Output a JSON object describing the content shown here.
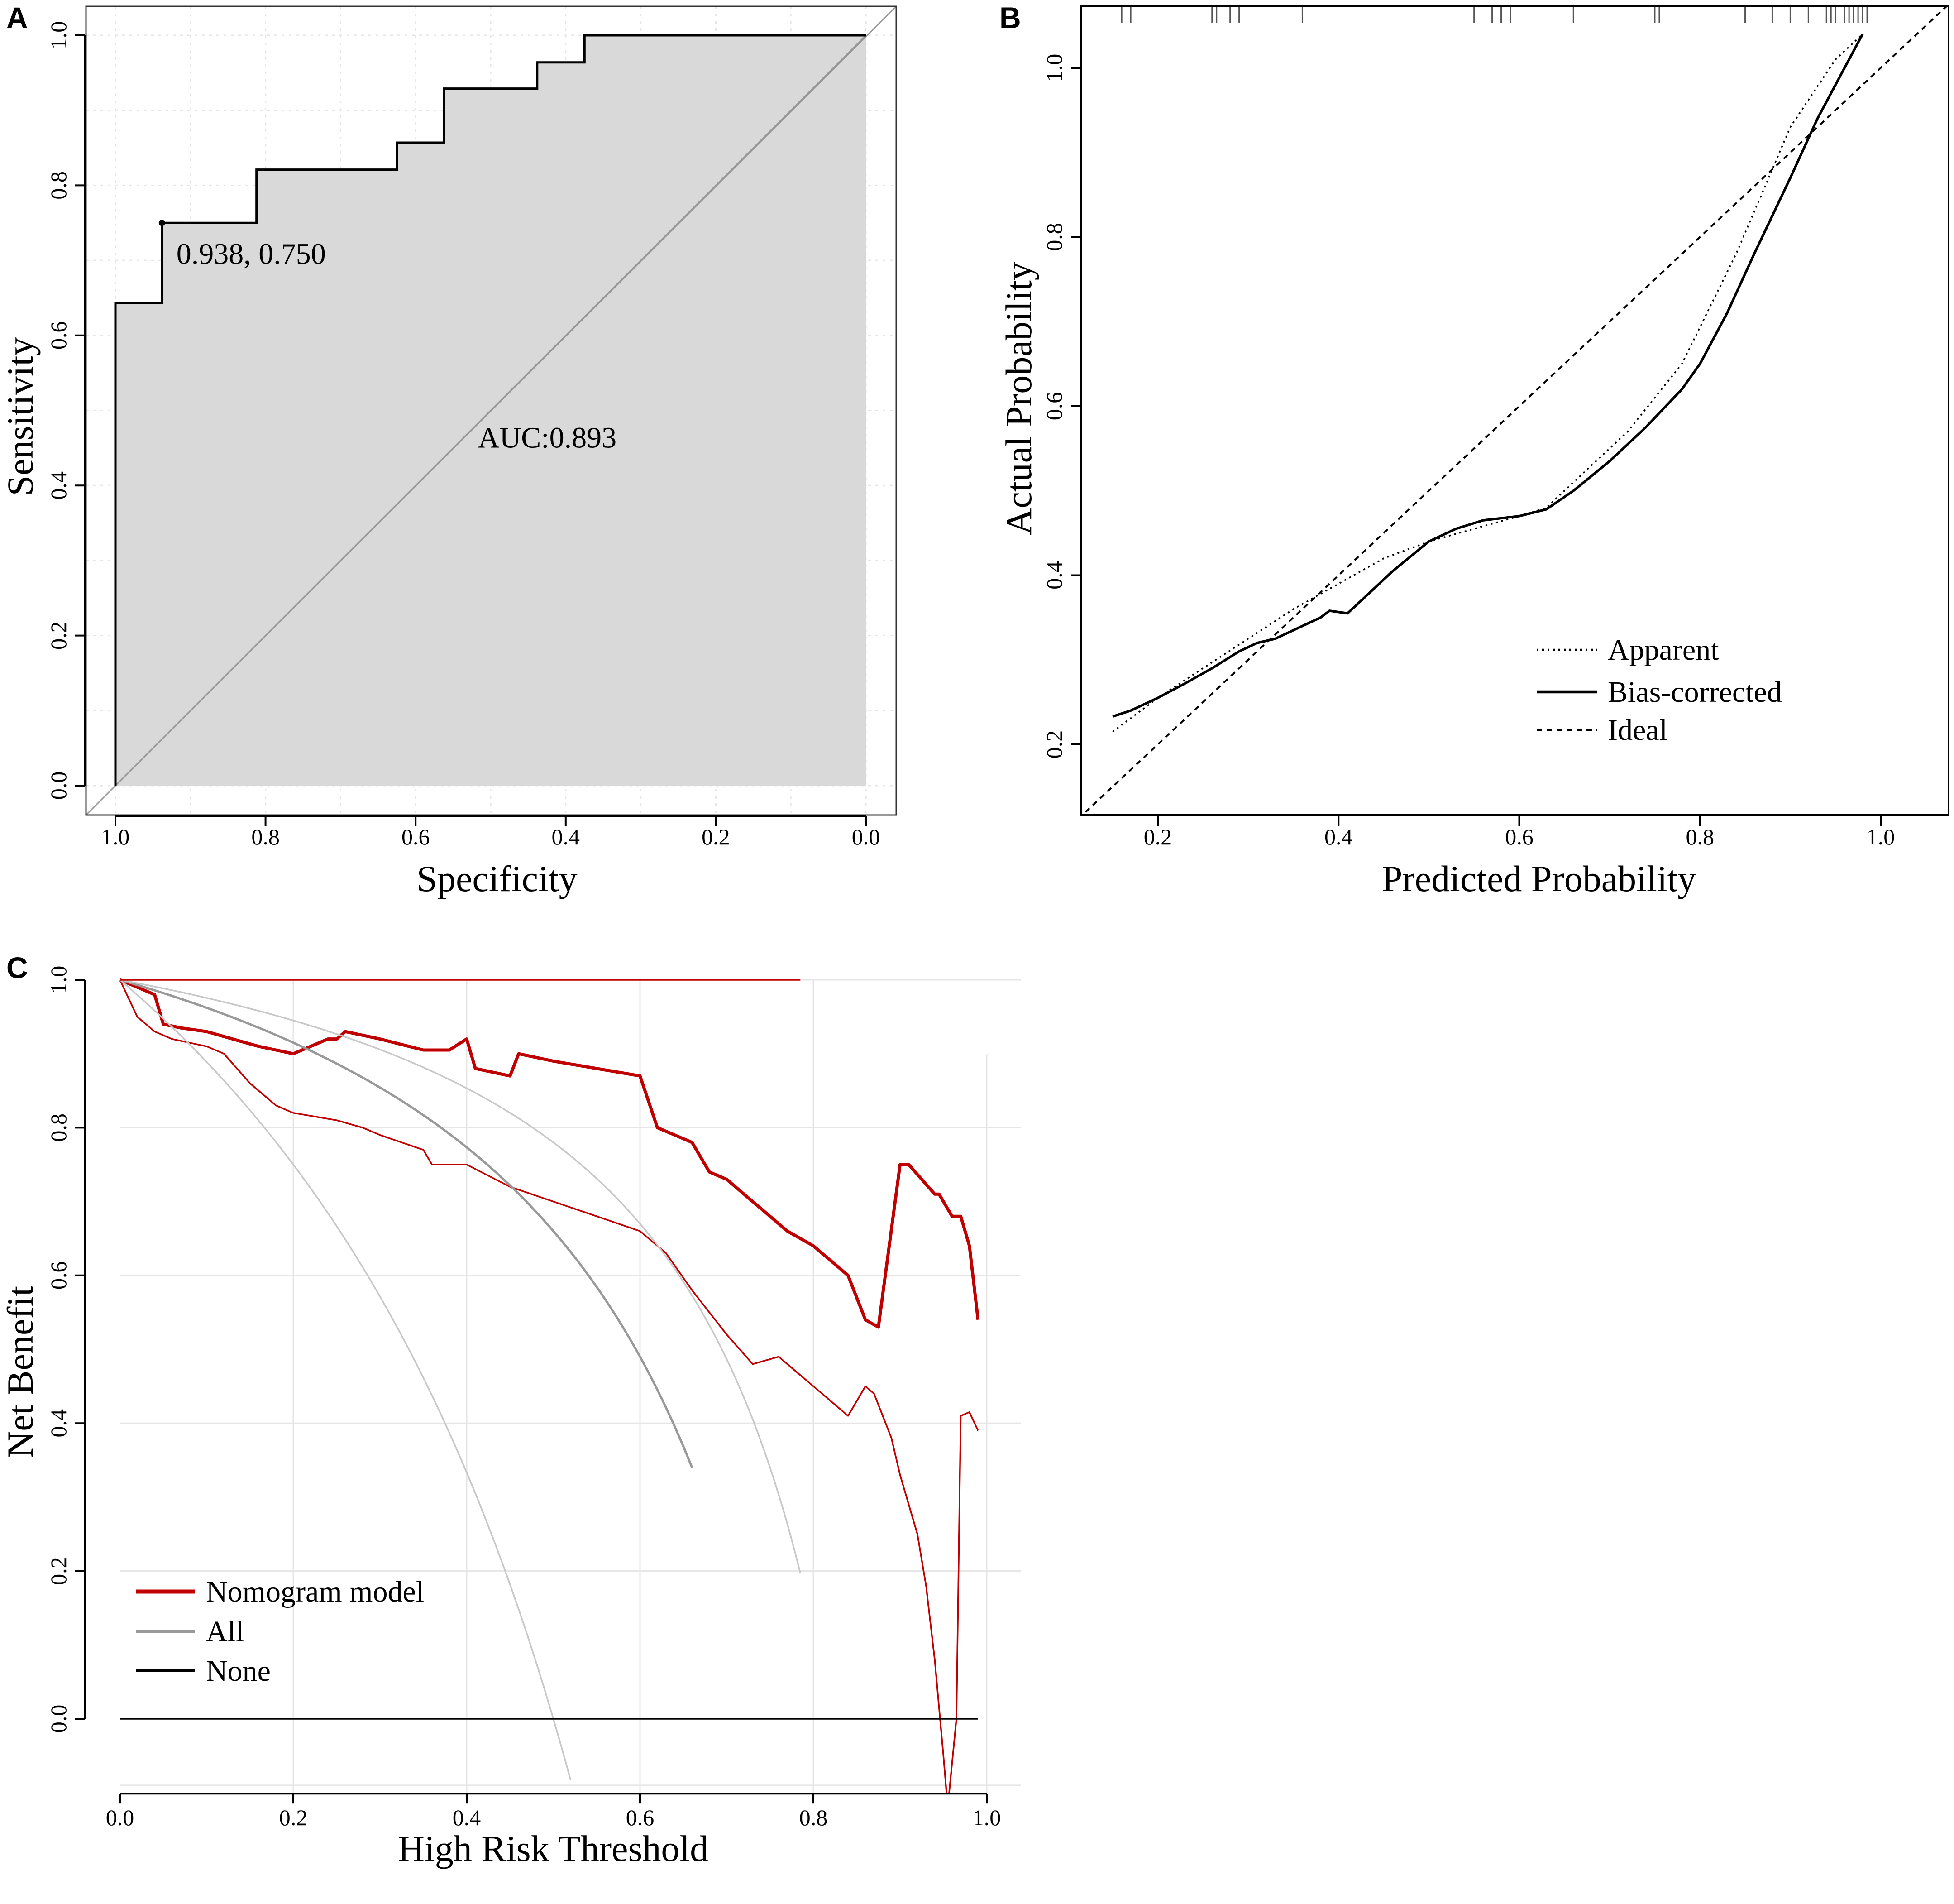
{
  "chart_data": [
    {
      "id": "A",
      "panel_label": "A",
      "type": "line",
      "subtype": "roc",
      "xlabel": "Specificity",
      "ylabel": "Sensitivity",
      "xlim": [
        1.0,
        0.0
      ],
      "ylim": [
        0.0,
        1.0
      ],
      "xticks": [
        "1.0",
        "0.8",
        "0.6",
        "0.4",
        "0.2",
        "0.0"
      ],
      "yticks": [
        "0.0",
        "0.2",
        "0.4",
        "0.6",
        "0.8",
        "1.0"
      ],
      "grid": true,
      "roc_curve": {
        "specificity": [
          1.0,
          1.0,
          0.938,
          0.938,
          0.812,
          0.812,
          0.625,
          0.625,
          0.562,
          0.562,
          0.438,
          0.438,
          0.375,
          0.375,
          0.0
        ],
        "sensitivity": [
          0.0,
          0.643,
          0.643,
          0.75,
          0.75,
          0.821,
          0.821,
          0.857,
          0.857,
          0.929,
          0.929,
          0.964,
          0.964,
          1.0,
          1.0
        ]
      },
      "best_point": {
        "specificity": 0.938,
        "sensitivity": 0.75,
        "label": "0.938, 0.750"
      },
      "auc_label": "AUC:0.893",
      "auc_label_at": {
        "specificity": 0.5,
        "sensitivity": 0.465
      },
      "colors": {
        "fill": "#d9d9d9",
        "curve": "#000000",
        "diagonal": "#999999"
      }
    },
    {
      "id": "B",
      "panel_label": "B",
      "type": "line",
      "subtype": "calibration",
      "xlabel": "Predicted Probability",
      "ylabel": "Actual Probability",
      "xlim": [
        0.12,
        1.08
      ],
      "ylim": [
        0.12,
        1.08
      ],
      "xticks": [
        "0.2",
        "0.4",
        "0.6",
        "0.8",
        "1.0"
      ],
      "yticks": [
        "0.2",
        "0.4",
        "0.6",
        "0.8",
        "1.0"
      ],
      "grid": false,
      "series": [
        {
          "name": "Apparent",
          "style": "dotted",
          "x": [
            0.15,
            0.2,
            0.25,
            0.3,
            0.35,
            0.4,
            0.45,
            0.5,
            0.55,
            0.6,
            0.63,
            0.67,
            0.72,
            0.78,
            0.84,
            0.9,
            0.95,
            0.98
          ],
          "y": [
            0.215,
            0.255,
            0.29,
            0.325,
            0.36,
            0.39,
            0.42,
            0.44,
            0.455,
            0.47,
            0.48,
            0.52,
            0.57,
            0.65,
            0.78,
            0.93,
            1.01,
            1.04
          ]
        },
        {
          "name": "Bias-corrected",
          "style": "solid",
          "x": [
            0.15,
            0.17,
            0.2,
            0.23,
            0.26,
            0.29,
            0.31,
            0.33,
            0.35,
            0.38,
            0.39,
            0.41,
            0.43,
            0.46,
            0.5,
            0.53,
            0.56,
            0.6,
            0.63,
            0.66,
            0.7,
            0.74,
            0.78,
            0.8,
            0.83,
            0.86,
            0.9,
            0.93,
            0.96,
            0.98
          ],
          "y": [
            0.233,
            0.24,
            0.255,
            0.272,
            0.29,
            0.31,
            0.32,
            0.325,
            0.335,
            0.35,
            0.358,
            0.355,
            0.375,
            0.405,
            0.44,
            0.455,
            0.465,
            0.47,
            0.478,
            0.5,
            0.535,
            0.575,
            0.62,
            0.65,
            0.71,
            0.78,
            0.87,
            0.94,
            1.0,
            1.04
          ]
        },
        {
          "name": "Ideal",
          "style": "dashed",
          "x": [
            0.12,
            1.08
          ],
          "y": [
            0.12,
            1.08
          ]
        }
      ],
      "rug_x": [
        0.16,
        0.17,
        0.26,
        0.265,
        0.28,
        0.29,
        0.36,
        0.55,
        0.57,
        0.58,
        0.59,
        0.66,
        0.75,
        0.755,
        0.85,
        0.88,
        0.9,
        0.92,
        0.94,
        0.945,
        0.95,
        0.96,
        0.965,
        0.97,
        0.975,
        0.98,
        0.985
      ],
      "legend": [
        "Apparent",
        "Bias-corrected",
        "Ideal"
      ],
      "legend_position": "bottom-right"
    },
    {
      "id": "C",
      "panel_label": "C",
      "type": "line",
      "subtype": "decision_curve",
      "xlabel": "High Risk Threshold",
      "ylabel": "Net Benefit",
      "xlim": [
        0.0,
        1.0
      ],
      "ylim": [
        -0.1,
        1.0
      ],
      "xticks": [
        "0.0",
        "0.2",
        "0.4",
        "0.6",
        "0.8",
        "1.0"
      ],
      "yticks": [
        "0.0",
        "0.2",
        "0.4",
        "0.6",
        "0.8",
        "1.0"
      ],
      "grid": true,
      "series": [
        {
          "name": "Nomogram model",
          "color": "#c00000",
          "width": "thick",
          "x": [
            0.0,
            0.02,
            0.04,
            0.05,
            0.07,
            0.1,
            0.13,
            0.16,
            0.18,
            0.2,
            0.22,
            0.24,
            0.25,
            0.26,
            0.3,
            0.35,
            0.38,
            0.4,
            0.41,
            0.45,
            0.46,
            0.5,
            0.55,
            0.6,
            0.62,
            0.64,
            0.66,
            0.68,
            0.7,
            0.72,
            0.76,
            0.77,
            0.8,
            0.84,
            0.86,
            0.875,
            0.9,
            0.91,
            0.94,
            0.945,
            0.96,
            0.97,
            0.98,
            0.99
          ],
          "y": [
            1.0,
            0.99,
            0.98,
            0.94,
            0.935,
            0.93,
            0.92,
            0.91,
            0.905,
            0.9,
            0.91,
            0.92,
            0.92,
            0.93,
            0.92,
            0.905,
            0.905,
            0.92,
            0.88,
            0.87,
            0.9,
            0.89,
            0.88,
            0.87,
            0.8,
            0.79,
            0.78,
            0.74,
            0.73,
            0.71,
            0.67,
            0.66,
            0.64,
            0.6,
            0.54,
            0.53,
            0.75,
            0.75,
            0.71,
            0.71,
            0.68,
            0.68,
            0.64,
            0.54
          ]
        },
        {
          "name": "Nomogram model (corrected)",
          "color": "#c00000",
          "width": "thin",
          "legend": false,
          "x": [
            0.0,
            0.02,
            0.04,
            0.06,
            0.1,
            0.12,
            0.15,
            0.18,
            0.2,
            0.25,
            0.28,
            0.3,
            0.35,
            0.36,
            0.4,
            0.45,
            0.5,
            0.55,
            0.6,
            0.63,
            0.66,
            0.68,
            0.7,
            0.73,
            0.76,
            0.78,
            0.8,
            0.82,
            0.84,
            0.86,
            0.87,
            0.89,
            0.9,
            0.92,
            0.93,
            0.94,
            0.95,
            0.955,
            0.965,
            0.97,
            0.98,
            0.99
          ],
          "y": [
            1.0,
            0.95,
            0.93,
            0.92,
            0.91,
            0.9,
            0.86,
            0.83,
            0.82,
            0.81,
            0.8,
            0.79,
            0.77,
            0.75,
            0.75,
            0.72,
            0.7,
            0.68,
            0.66,
            0.63,
            0.58,
            0.55,
            0.52,
            0.48,
            0.49,
            0.47,
            0.45,
            0.43,
            0.41,
            0.45,
            0.44,
            0.38,
            0.33,
            0.25,
            0.18,
            0.08,
            -0.05,
            -0.12,
            0.0,
            0.41,
            0.415,
            0.39
          ]
        },
        {
          "name": "All",
          "color": "#999999",
          "width": "medium",
          "formula": "1-(0.34/(1-t))*t",
          "x_max": 0.66
        },
        {
          "name": "All (light, left)",
          "color": "#c8c8c8",
          "width": "thin",
          "legend": false,
          "formula": "1-(1/(1-t))*t",
          "x_max": 0.52
        },
        {
          "name": "All (light, right)",
          "color": "#c8c8c8",
          "width": "thin",
          "legend": false,
          "formula": "1-(0.22/(1-t))*t",
          "x_max": 0.785
        },
        {
          "name": "None",
          "color": "#000000",
          "width": "thin",
          "x": [
            0.0,
            0.99
          ],
          "y": [
            0.0,
            0.0
          ]
        },
        {
          "name": "Treat-all reference",
          "color": "#c00000",
          "width": "thin",
          "legend": false,
          "x": [
            0.0,
            0.785
          ],
          "y": [
            1.0,
            1.0
          ]
        }
      ],
      "legend": [
        "Nomogram model",
        "All",
        "None"
      ],
      "legend_position": "bottom-left"
    }
  ]
}
